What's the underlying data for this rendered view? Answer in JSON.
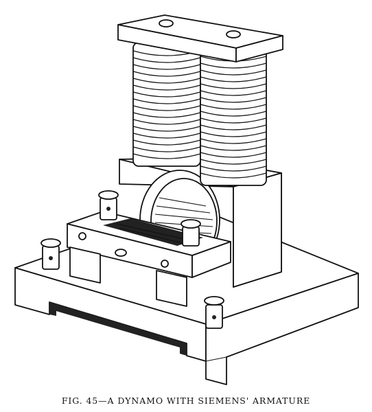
{
  "figure": {
    "caption": "FIG. 45—A DYNAMO WITH SIEMENS' ARMATURE"
  }
}
